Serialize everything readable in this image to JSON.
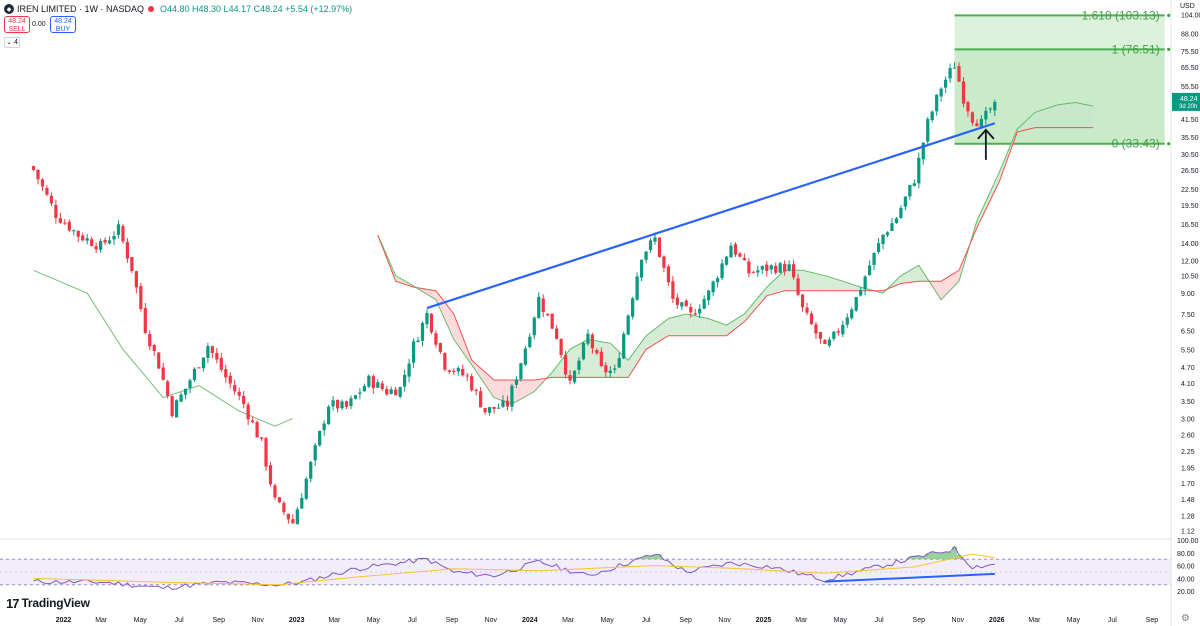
{
  "header": {
    "symbol": "IREN LIMITED · 1W · NASDAQ",
    "ohlc": "O44.80 H48.30 L44.17 C48.24 +5.54 (+12.97%)",
    "sell_price": "48.24",
    "sell_label": "SELL",
    "spread": "0.00",
    "buy_price": "48.24",
    "buy_label": "BUY",
    "collapse_label": "⌄ 4",
    "logo_icon": "iren-logo-icon",
    "market_status_icon": "market-closed-dot-icon"
  },
  "currency": "USD",
  "watermark": "TradingView",
  "colors": {
    "up": "#089981",
    "down": "#f23645",
    "trendline": "#2962ff",
    "fib_fill": "#b7e4b7",
    "fib_line": "#4caf50",
    "rsi": "#7e57c2",
    "rsi_ma": "#fbc02d",
    "price_tag": "#089981"
  },
  "chart_data": [
    {
      "type": "candlestick",
      "title": "",
      "scale": "log",
      "ylim": [
        1.05,
        110
      ],
      "y_ticks": [
        "1.12",
        "1.28",
        "1.48",
        "1.70",
        "1.95",
        "2.25",
        "2.60",
        "3.00",
        "3.50",
        "4.10",
        "4.70",
        "5.50",
        "6.50",
        "7.50",
        "9.00",
        "10.50",
        "12.00",
        "14.00",
        "16.50",
        "19.50",
        "22.50",
        "26.50",
        "30.50",
        "35.50",
        "41.50",
        "48.00",
        "55.50",
        "65.50",
        "75.50",
        "88.00",
        "104.00"
      ],
      "x_labels": [
        "2022",
        "Mar",
        "May",
        "Jul",
        "Sep",
        "Nov",
        "2023",
        "Mar",
        "May",
        "Jul",
        "Sep",
        "Nov",
        "2024",
        "Mar",
        "May",
        "Jul",
        "Sep",
        "Nov",
        "2025",
        "Mar",
        "May",
        "Jul",
        "Sep",
        "Nov",
        "2026",
        "Mar",
        "May",
        "Jul",
        "Sep"
      ],
      "close_path": [
        [
          "2021-11-15",
          26.6
        ],
        [
          "2021-12-20",
          18.0
        ],
        [
          "2022-01-24",
          15.0
        ],
        [
          "2022-02-28",
          13.6
        ],
        [
          "2022-03-28",
          15.8
        ],
        [
          "2022-04-18",
          11.2
        ],
        [
          "2022-05-09",
          6.6
        ],
        [
          "2022-05-30",
          4.8
        ],
        [
          "2022-06-20",
          3.2
        ],
        [
          "2022-07-11",
          3.9
        ],
        [
          "2022-08-15",
          5.7
        ],
        [
          "2022-09-12",
          4.3
        ],
        [
          "2022-10-10",
          3.4
        ],
        [
          "2022-11-07",
          2.4
        ],
        [
          "2022-11-28",
          1.45
        ],
        [
          "2022-12-26",
          1.2
        ],
        [
          "2023-01-23",
          2.0
        ],
        [
          "2023-02-20",
          3.4
        ],
        [
          "2023-03-20",
          3.3
        ],
        [
          "2023-04-24",
          4.2
        ],
        [
          "2023-05-22",
          3.8
        ],
        [
          "2023-06-12",
          3.9
        ],
        [
          "2023-07-03",
          5.7
        ],
        [
          "2023-07-24",
          7.5
        ],
        [
          "2023-08-21",
          4.8
        ],
        [
          "2023-09-25",
          4.3
        ],
        [
          "2023-10-23",
          3.2
        ],
        [
          "2023-11-27",
          3.4
        ],
        [
          "2023-12-25",
          5.6
        ],
        [
          "2024-01-15",
          8.6
        ],
        [
          "2024-02-12",
          6.2
        ],
        [
          "2024-03-04",
          4.0
        ],
        [
          "2024-04-01",
          6.2
        ],
        [
          "2024-04-22",
          4.6
        ],
        [
          "2024-05-13",
          4.5
        ],
        [
          "2024-06-03",
          7.5
        ],
        [
          "2024-06-24",
          12.6
        ],
        [
          "2024-07-15",
          14.5
        ],
        [
          "2024-08-12",
          8.5
        ],
        [
          "2024-09-09",
          7.4
        ],
        [
          "2024-10-07",
          9.0
        ],
        [
          "2024-11-11",
          13.8
        ],
        [
          "2024-12-09",
          10.8
        ],
        [
          "2025-01-13",
          11.3
        ],
        [
          "2025-02-10",
          11.3
        ],
        [
          "2025-03-03",
          7.8
        ],
        [
          "2025-04-07",
          5.5
        ],
        [
          "2025-04-28",
          6.5
        ],
        [
          "2025-05-26",
          8.6
        ],
        [
          "2025-06-16",
          11.5
        ],
        [
          "2025-07-07",
          15.0
        ],
        [
          "2025-07-28",
          17.5
        ],
        [
          "2025-08-25",
          24.5
        ],
        [
          "2025-09-15",
          40.0
        ],
        [
          "2025-10-06",
          55.0
        ],
        [
          "2025-10-27",
          67.0
        ],
        [
          "2025-11-10",
          50.0
        ],
        [
          "2025-11-24",
          42.0
        ],
        [
          "2025-12-08",
          40.0
        ],
        [
          "2025-12-29",
          48.24
        ]
      ],
      "last_price": "48.24",
      "last_price_countdown": "3d 20h",
      "trendlines": [
        {
          "from": [
            "2023-07-24",
            7.9
          ],
          "to": [
            "2025-12-29",
            40.0
          ],
          "color": "#2962ff"
        }
      ],
      "fib_retracement": {
        "from_date": "2025-10-27",
        "to_date": "2026-09-21",
        "levels": [
          {
            "ratio": "1.618",
            "price": 103.13,
            "label": "1.618 (103.13)"
          },
          {
            "ratio": "1",
            "price": 76.51,
            "label": "1 (76.51)"
          },
          {
            "ratio": "0",
            "price": 33.43,
            "label": "0 (33.43)"
          }
        ]
      },
      "annotations": [
        {
          "type": "arrow-up",
          "date": "2025-12-15",
          "price": 29.0,
          "icon": "up-arrow-icon"
        }
      ],
      "ichimoku": {
        "span_a": [
          [
            "2023-05-08",
            15.0
          ],
          [
            "2023-06-05",
            10.5
          ],
          [
            "2023-07-03",
            9.6
          ],
          [
            "2023-08-07",
            8.5
          ],
          [
            "2023-09-04",
            6.0
          ],
          [
            "2023-10-02",
            4.8
          ],
          [
            "2023-11-06",
            3.6
          ],
          [
            "2023-12-04",
            3.4
          ],
          [
            "2024-01-08",
            3.8
          ],
          [
            "2024-02-05",
            4.5
          ],
          [
            "2024-03-04",
            5.5
          ],
          [
            "2024-04-01",
            6.0
          ],
          [
            "2024-05-06",
            5.8
          ],
          [
            "2024-06-03",
            5.0
          ],
          [
            "2024-07-01",
            6.2
          ],
          [
            "2024-08-05",
            7.2
          ],
          [
            "2024-09-02",
            7.5
          ],
          [
            "2024-10-07",
            7.2
          ],
          [
            "2024-11-04",
            6.8
          ],
          [
            "2024-12-02",
            7.5
          ],
          [
            "2025-01-06",
            9.5
          ],
          [
            "2025-02-03",
            11.0
          ],
          [
            "2025-03-03",
            11.0
          ],
          [
            "2025-04-07",
            10.5
          ],
          [
            "2025-05-05",
            10.0
          ],
          [
            "2025-06-02",
            9.5
          ],
          [
            "2025-07-07",
            9.0
          ],
          [
            "2025-08-04",
            10.5
          ],
          [
            "2025-09-01",
            11.5
          ],
          [
            "2025-10-06",
            8.5
          ],
          [
            "2025-11-03",
            10.0
          ],
          [
            "2025-12-01",
            17.0
          ],
          [
            "2026-01-05",
            26.0
          ],
          [
            "2026-02-02",
            38.0
          ],
          [
            "2026-03-02",
            44.0
          ],
          [
            "2026-04-06",
            47.0
          ],
          [
            "2026-05-04",
            48.0
          ],
          [
            "2026-06-01",
            46.5
          ]
        ],
        "span_b": [
          [
            "2023-05-08",
            15.0
          ],
          [
            "2023-06-05",
            10.0
          ],
          [
            "2023-07-03",
            9.5
          ],
          [
            "2023-08-07",
            9.2
          ],
          [
            "2023-09-04",
            7.5
          ],
          [
            "2023-10-02",
            5.0
          ],
          [
            "2023-11-06",
            4.2
          ],
          [
            "2023-12-04",
            4.2
          ],
          [
            "2024-01-08",
            4.2
          ],
          [
            "2024-02-05",
            4.3
          ],
          [
            "2024-03-04",
            4.3
          ],
          [
            "2024-04-01",
            4.3
          ],
          [
            "2024-05-06",
            4.3
          ],
          [
            "2024-06-03",
            4.3
          ],
          [
            "2024-07-01",
            5.5
          ],
          [
            "2024-08-05",
            6.2
          ],
          [
            "2024-09-02",
            6.2
          ],
          [
            "2024-10-07",
            6.2
          ],
          [
            "2024-11-04",
            6.2
          ],
          [
            "2024-12-02",
            7.0
          ],
          [
            "2025-01-06",
            8.8
          ],
          [
            "2025-02-03",
            9.2
          ],
          [
            "2025-03-03",
            9.2
          ],
          [
            "2025-04-07",
            9.2
          ],
          [
            "2025-05-05",
            9.2
          ],
          [
            "2025-06-02",
            9.2
          ],
          [
            "2025-07-07",
            9.2
          ],
          [
            "2025-08-04",
            9.8
          ],
          [
            "2025-09-01",
            10.0
          ],
          [
            "2025-10-06",
            10.0
          ],
          [
            "2025-11-03",
            11.0
          ],
          [
            "2025-12-01",
            16.0
          ],
          [
            "2026-01-05",
            24.0
          ],
          [
            "2026-02-02",
            37.0
          ],
          [
            "2026-03-02",
            38.5
          ],
          [
            "2026-04-06",
            38.5
          ],
          [
            "2026-05-04",
            38.5
          ],
          [
            "2026-06-01",
            38.5
          ]
        ],
        "lagging": [
          [
            "2021-11-15",
            11.0
          ],
          [
            "2022-02-07",
            9.0
          ],
          [
            "2022-04-04",
            5.5
          ],
          [
            "2022-06-06",
            3.6
          ],
          [
            "2022-08-01",
            4.0
          ],
          [
            "2022-10-03",
            3.2
          ],
          [
            "2022-11-28",
            2.8
          ],
          [
            "2022-12-26",
            3.0
          ]
        ]
      }
    },
    {
      "type": "line",
      "title": "",
      "ylim": [
        0,
        100
      ],
      "y_ticks": [
        "100.00",
        "80.00",
        "60.00",
        "40.00",
        "20.00"
      ],
      "bands": [
        30,
        70
      ],
      "series": [
        {
          "values": [
            [
              "2021-11-15",
              35
            ],
            [
              "2022-03-07",
              34
            ],
            [
              "2022-06-06",
              25
            ],
            [
              "2022-09-05",
              34
            ],
            [
              "2022-12-05",
              30
            ],
            [
              "2023-01-09",
              34
            ],
            [
              "2023-04-03",
              55
            ],
            [
              "2023-07-24",
              70
            ],
            [
              "2023-09-04",
              50
            ],
            [
              "2023-11-06",
              44
            ],
            [
              "2024-01-15",
              66
            ],
            [
              "2024-04-01",
              44
            ],
            [
              "2024-07-15",
              78
            ],
            [
              "2024-09-02",
              50
            ],
            [
              "2024-11-11",
              64
            ],
            [
              "2025-01-13",
              58
            ],
            [
              "2025-04-07",
              38
            ],
            [
              "2025-06-16",
              55
            ],
            [
              "2025-08-25",
              72
            ],
            [
              "2025-10-27",
              86
            ],
            [
              "2025-11-24",
              58
            ],
            [
              "2025-12-29",
              62
            ]
          ]
        },
        {
          "values": [
            [
              "2021-11-15",
              40
            ],
            [
              "2022-06-06",
              34
            ],
            [
              "2022-12-05",
              30
            ],
            [
              "2023-04-03",
              42
            ],
            [
              "2023-09-04",
              55
            ],
            [
              "2024-01-15",
              52
            ],
            [
              "2024-07-15",
              60
            ],
            [
              "2024-11-11",
              56
            ],
            [
              "2025-04-07",
              48
            ],
            [
              "2025-08-25",
              58
            ],
            [
              "2025-11-24",
              78
            ],
            [
              "2025-12-29",
              72
            ]
          ]
        }
      ],
      "trendlines": [
        {
          "from": [
            "2025-04-07",
            35
          ],
          "to": [
            "2025-12-29",
            47
          ],
          "color": "#2962ff"
        }
      ]
    }
  ]
}
